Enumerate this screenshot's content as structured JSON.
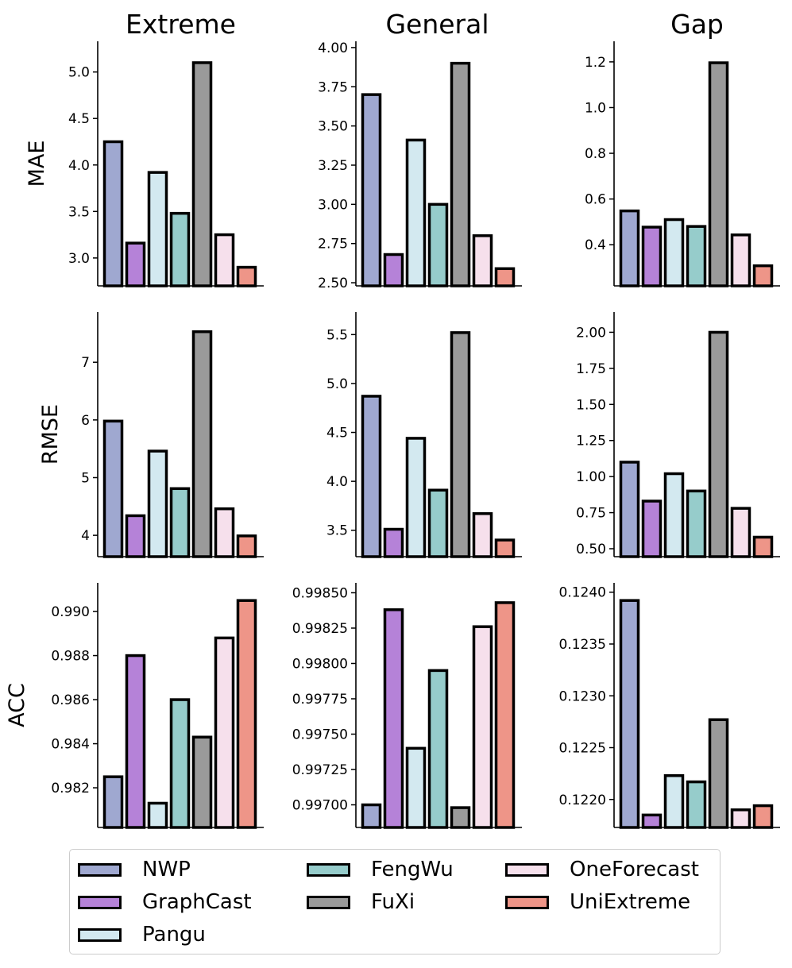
{
  "models": [
    {
      "name": "NWP",
      "color": "#9fa8d0"
    },
    {
      "name": "GraphCast",
      "color": "#b582d8"
    },
    {
      "name": "Pangu",
      "color": "#d3e9f0"
    },
    {
      "name": "FengWu",
      "color": "#96cccb"
    },
    {
      "name": "FuXi",
      "color": "#9a9a9a"
    },
    {
      "name": "OneForecast",
      "color": "#f6e0ec"
    },
    {
      "name": "UniExtreme",
      "color": "#ee9588"
    }
  ],
  "chart_data": {
    "type": "bar",
    "column_titles": [
      "Extreme",
      "General",
      "Gap"
    ],
    "row_labels": [
      "MAE",
      "RMSE",
      "ACC"
    ],
    "categories": [
      "NWP",
      "GraphCast",
      "Pangu",
      "FengWu",
      "FuXi",
      "OneForecast",
      "UniExtreme"
    ],
    "panels": [
      {
        "row": "MAE",
        "col": "Extreme",
        "values": [
          4.25,
          3.16,
          3.92,
          3.48,
          5.1,
          3.25,
          2.9
        ],
        "ylim": [
          2.7,
          5.33
        ],
        "ticks": [
          "3.0",
          "3.5",
          "4.0",
          "4.5",
          "5.0"
        ]
      },
      {
        "row": "MAE",
        "col": "General",
        "values": [
          3.7,
          2.68,
          3.41,
          3.0,
          3.9,
          2.8,
          2.59
        ],
        "ylim": [
          2.48,
          4.04
        ],
        "ticks": [
          "2.50",
          "2.75",
          "3.00",
          "3.25",
          "3.50",
          "3.75",
          "4.00"
        ]
      },
      {
        "row": "MAE",
        "col": "Gap",
        "values": [
          0.548,
          0.477,
          0.51,
          0.48,
          1.196,
          0.443,
          0.308
        ],
        "ylim": [
          0.22,
          1.29
        ],
        "ticks": [
          "0.4",
          "0.6",
          "0.8",
          "1.0",
          "1.2"
        ]
      },
      {
        "row": "RMSE",
        "col": "Extreme",
        "values": [
          5.98,
          4.34,
          5.46,
          4.81,
          7.53,
          4.46,
          3.99
        ],
        "ylim": [
          3.63,
          7.87
        ],
        "ticks": [
          "4",
          "5",
          "6",
          "7"
        ]
      },
      {
        "row": "RMSE",
        "col": "General",
        "values": [
          4.87,
          3.51,
          4.44,
          3.91,
          5.52,
          3.67,
          3.4
        ],
        "ylim": [
          3.23,
          5.73
        ],
        "ticks": [
          "3.5",
          "4.0",
          "4.5",
          "5.0",
          "5.5"
        ]
      },
      {
        "row": "RMSE",
        "col": "Gap",
        "values": [
          1.1,
          0.83,
          1.02,
          0.9,
          2.0,
          0.78,
          0.58
        ],
        "ylim": [
          0.445,
          2.14
        ],
        "ticks": [
          "0.50",
          "0.75",
          "1.00",
          "1.25",
          "1.50",
          "1.75",
          "2.00"
        ]
      },
      {
        "row": "ACC",
        "col": "Extreme",
        "values": [
          0.9825,
          0.988,
          0.9813,
          0.986,
          0.9843,
          0.9888,
          0.9905
        ],
        "ylim": [
          0.9802,
          0.9913
        ],
        "ticks": [
          "0.982",
          "0.984",
          "0.986",
          "0.988",
          "0.990"
        ]
      },
      {
        "row": "ACC",
        "col": "General",
        "values": [
          0.997,
          0.99838,
          0.9974,
          0.99795,
          0.99698,
          0.99826,
          0.99843
        ],
        "ylim": [
          0.99684,
          0.99857
        ],
        "ticks": [
          "0.99700",
          "0.99725",
          "0.99750",
          "0.99775",
          "0.99800",
          "0.99825",
          "0.99850"
        ]
      },
      {
        "row": "ACC",
        "col": "Gap",
        "values": [
          0.12392,
          0.12185,
          0.12223,
          0.12217,
          0.12277,
          0.1219,
          0.12194
        ],
        "ylim": [
          0.12173,
          0.12409
        ],
        "ticks": [
          "0.1220",
          "0.1225",
          "0.1230",
          "0.1235",
          "0.1240"
        ]
      }
    ]
  }
}
